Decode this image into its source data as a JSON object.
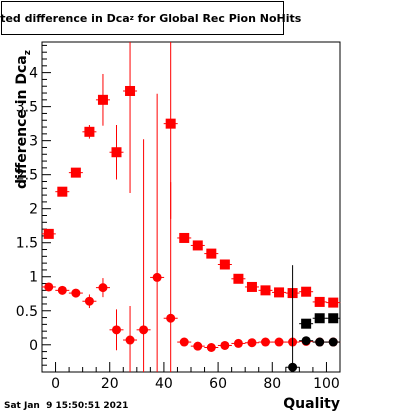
{
  "stamp": "Sat Jan  9 15:50:51 2021",
  "chart_data": {
    "type": "scatter",
    "title_main": "Fitted difference in Dca",
    "title_sub": "z",
    "title_tail": " for Global Rec Pion NoHits",
    "xlabel": "Quality",
    "ylabel_main": "difference in Dca",
    "ylabel_sub": "z",
    "xlim": [
      -5,
      105
    ],
    "ylim": [
      -0.4,
      4.45
    ],
    "xticks": [
      0,
      20,
      40,
      60,
      80,
      100
    ],
    "yticks": [
      0,
      0.5,
      1,
      1.5,
      2,
      2.5,
      3,
      3.5,
      4
    ],
    "xtick_labels": [
      "0",
      "20",
      "40",
      "60",
      "80",
      "100"
    ],
    "ytick_labels": [
      "0",
      "0.5",
      "1",
      "1.5",
      "2",
      "2.5",
      "3",
      "3.5",
      "4"
    ],
    "series": [
      {
        "marker": "square",
        "color": "#ff0000",
        "x": [
          -2.5,
          2.5,
          7.5,
          12.5,
          17.5,
          22.5,
          27.5,
          42.5,
          47.5,
          52.5,
          57.5,
          62.5,
          67.5,
          72.5,
          77.5,
          82.5,
          87.5,
          92.5,
          97.5,
          102.5
        ],
        "y": [
          1.63,
          2.25,
          2.53,
          3.13,
          3.6,
          2.83,
          3.73,
          3.25,
          1.57,
          1.46,
          1.34,
          1.18,
          0.97,
          0.85,
          0.8,
          0.77,
          0.76,
          0.78,
          0.63,
          0.62
        ],
        "err": [
          0.04,
          0.04,
          0.05,
          0.1,
          0.38,
          0.4,
          1.5,
          1.4,
          0.03,
          0.03,
          0.03,
          0.03,
          0.03,
          0.03,
          0.03,
          0.03,
          0.05,
          0.05,
          0.04,
          0.04
        ]
      },
      {
        "marker": "circle",
        "color": "#ff0000",
        "x": [
          -2.5,
          2.5,
          7.5,
          12.5,
          17.5,
          22.5,
          27.5,
          32.5,
          37.5,
          42.5,
          47.5,
          52.5,
          57.5,
          62.5,
          67.5,
          72.5,
          77.5,
          82.5,
          87.5,
          92.5,
          97.5,
          102.5
        ],
        "y": [
          0.85,
          0.8,
          0.76,
          0.64,
          0.84,
          0.22,
          0.07,
          0.22,
          0.99,
          0.39,
          0.04,
          -0.02,
          -0.04,
          -0.01,
          0.02,
          0.03,
          0.04,
          0.04,
          0.04,
          0.05,
          0.04,
          0.04
        ],
        "err": [
          0.03,
          0.03,
          0.04,
          0.1,
          0.14,
          0.3,
          0.5,
          2.8,
          2.7,
          2.0,
          0.03,
          0.03,
          0.02,
          0.02,
          0.02,
          0.02,
          0.02,
          0.02,
          0.02,
          0.02,
          0.02,
          0.02
        ]
      },
      {
        "marker": "square",
        "color": "#000000",
        "x": [
          92.5,
          97.5,
          102.5
        ],
        "y": [
          0.31,
          0.39,
          0.39
        ],
        "err": [
          0.03,
          0.03,
          0.03
        ]
      },
      {
        "marker": "circle",
        "color": "#000000",
        "x": [
          87.5,
          92.5,
          97.5,
          102.5
        ],
        "y": [
          -0.33,
          0.06,
          0.04,
          0.04
        ],
        "err": [
          1.5,
          0.03,
          0.03,
          0.03
        ]
      }
    ]
  }
}
